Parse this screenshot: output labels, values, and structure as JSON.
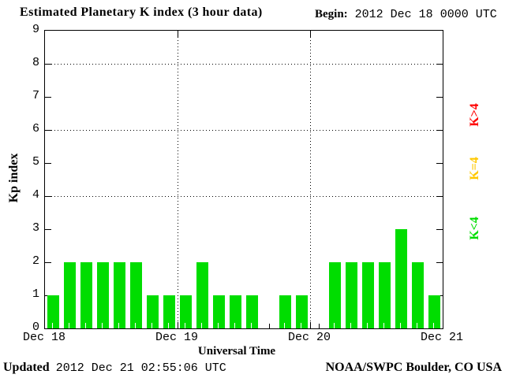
{
  "chart_data": {
    "type": "bar",
    "title": "Estimated Planetary K index (3 hour data)",
    "begin_label": "Begin:",
    "begin_value": "2012 Dec 18 0000 UTC",
    "xlabel": "Universal Time",
    "ylabel": "Kp index",
    "ylim": [
      0,
      9
    ],
    "y_ticks": [
      0,
      1,
      2,
      3,
      4,
      5,
      6,
      7,
      8,
      9
    ],
    "gridline_y": [
      4,
      6,
      8
    ],
    "grid": "dotted",
    "hours_per_bar": 3,
    "day_labels": [
      "Dec 18",
      "Dec 19",
      "Dec 20",
      "Dec 21"
    ],
    "bars_per_day": 8,
    "values": [
      1,
      2,
      2,
      2,
      2,
      2,
      1,
      1,
      1,
      2,
      1,
      1,
      1,
      0,
      1,
      1,
      0,
      2,
      2,
      2,
      2,
      3,
      2,
      1
    ],
    "bar_color": "#00dd00",
    "legend_position": "right",
    "legend": [
      {
        "label": "K>4",
        "color": "#ff0000"
      },
      {
        "label": "K=4",
        "color": "#ffc800"
      },
      {
        "label": "K<4",
        "color": "#00dd00"
      }
    ]
  },
  "footer": {
    "updated_label": "Updated",
    "updated_value": "2012 Dec 21 02:55:06 UTC",
    "attribution": "NOAA/SWPC Boulder, CO USA"
  }
}
